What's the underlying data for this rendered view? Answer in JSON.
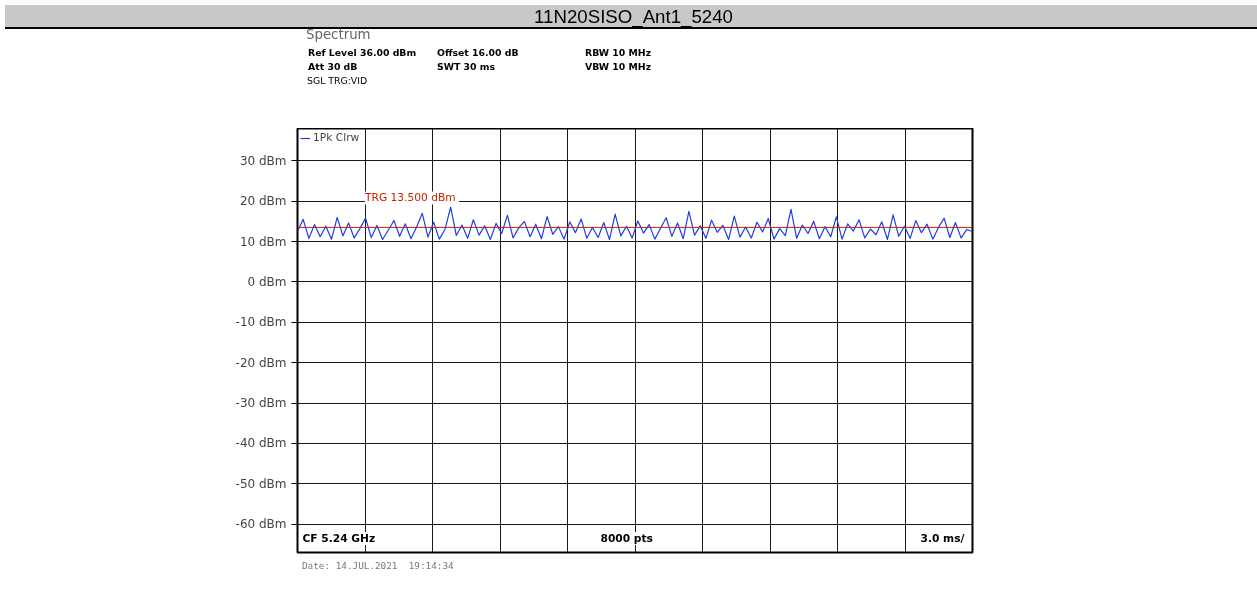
{
  "chart_data": {
    "type": "line",
    "title": "11N20SISO_Ant1_5240",
    "annotations": [
      "Spectrum",
      "Ref Level 36.00 dBm",
      "Offset 16.00 dB",
      "RBW 10 MHz",
      "Att 30 dB",
      "SWT 30 ms",
      "VBW 10 MHz",
      "SGL TRG:VID",
      "CF 5.24 GHz",
      "8000 pts",
      "3.0 ms/",
      "Date: 14.JUL.2021  19:14:34"
    ],
    "categories": [
      null,
      null,
      null,
      null,
      null,
      null,
      null,
      null,
      null,
      null,
      null,
      null,
      null,
      null,
      null,
      null,
      null,
      null,
      null,
      null,
      null,
      null,
      null,
      null,
      null,
      null,
      null,
      null,
      null,
      null,
      null,
      null,
      null,
      null,
      null,
      null,
      null,
      null,
      null,
      null,
      null,
      null,
      null,
      null,
      null,
      null,
      null,
      null,
      null,
      null,
      null,
      null,
      null,
      null,
      null,
      null,
      null,
      null,
      null,
      null,
      null,
      null,
      null,
      null,
      null,
      null,
      null,
      null,
      null,
      null,
      null,
      null,
      null,
      null,
      null,
      null,
      null,
      null,
      null,
      null,
      null,
      null,
      null,
      null,
      null,
      null,
      null,
      null,
      null,
      null,
      null,
      null,
      null,
      null,
      null,
      null,
      null,
      null,
      null,
      null,
      null,
      null,
      null,
      null,
      null,
      null,
      null,
      null,
      null,
      null,
      null,
      null,
      null,
      null,
      null,
      null,
      null,
      null,
      null,
      null
    ],
    "series": [
      {
        "name": "1Pk Clrw",
        "color": "#1f3fe0",
        "values": [
          12.5,
          15.5,
          10.8,
          14.2,
          11.2,
          13.8,
          10.6,
          16.0,
          11.4,
          14.6,
          10.9,
          13.2,
          15.8,
          11.0,
          14.0,
          10.5,
          12.8,
          15.2,
          11.3,
          14.4,
          10.7,
          13.6,
          17.0,
          11.1,
          14.8,
          10.6,
          13.0,
          18.5,
          11.5,
          14.1,
          10.8,
          15.4,
          11.6,
          13.9,
          10.5,
          14.5,
          12.0,
          16.5,
          10.9,
          13.4,
          15.0,
          11.2,
          14.3,
          10.7,
          16.2,
          11.8,
          13.7,
          10.6,
          14.9,
          12.2,
          15.6,
          10.8,
          13.5,
          11.0,
          14.7,
          10.5,
          16.8,
          11.4,
          13.8,
          10.9,
          15.1,
          12.1,
          14.2,
          10.6,
          13.3,
          15.9,
          11.3,
          14.6,
          10.7,
          17.5,
          11.6,
          13.9,
          10.8,
          15.3,
          12.3,
          14.0,
          10.5,
          16.3,
          11.1,
          13.6,
          10.9,
          14.8,
          12.4,
          15.7,
          10.6,
          13.2,
          11.5,
          18.0,
          10.8,
          14.1,
          12.0,
          15.0,
          10.7,
          13.7,
          11.2,
          16.1,
          10.6,
          14.4,
          12.6,
          15.4,
          10.9,
          13.1,
          11.7,
          14.9,
          10.5,
          16.6,
          11.3,
          13.8,
          10.8,
          15.2,
          12.2,
          14.3,
          10.6,
          13.5,
          15.8,
          11.0,
          14.7,
          10.9,
          13.0,
          12.5
        ]
      }
    ],
    "ylim": [
      -67,
      38
    ],
    "yticks": [
      {
        "value": 30,
        "label": "30 dBm"
      },
      {
        "value": 20,
        "label": "20 dBm"
      },
      {
        "value": 10,
        "label": "10 dBm"
      },
      {
        "value": 0,
        "label": "0 dBm"
      },
      {
        "value": -10,
        "label": "-10 dBm"
      },
      {
        "value": -20,
        "label": "-20 dBm"
      },
      {
        "value": -30,
        "label": "-30 dBm"
      },
      {
        "value": -40,
        "label": "-40 dBm"
      },
      {
        "value": -50,
        "label": "-50 dBm"
      },
      {
        "value": -60,
        "label": "-60 dBm"
      }
    ],
    "ref_lines": [
      {
        "axis": "y",
        "value": 13.5,
        "label": "TRG  13.500 dBm",
        "color": "#cc2200"
      }
    ],
    "tick_labels": "y",
    "grid": true,
    "legend": "top left",
    "marker": "none",
    "line_style": "solid"
  }
}
